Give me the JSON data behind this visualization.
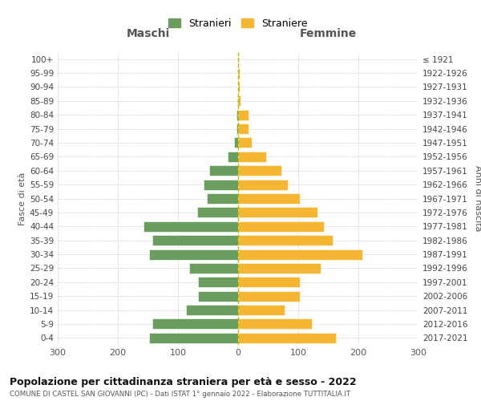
{
  "age_groups": [
    "100+",
    "95-99",
    "90-94",
    "85-89",
    "80-84",
    "75-79",
    "70-74",
    "65-69",
    "60-64",
    "55-59",
    "50-54",
    "45-49",
    "40-44",
    "35-39",
    "30-34",
    "25-29",
    "20-24",
    "15-19",
    "10-14",
    "5-9",
    "0-4"
  ],
  "birth_years": [
    "≤ 1921",
    "1922-1926",
    "1927-1931",
    "1932-1936",
    "1937-1941",
    "1942-1946",
    "1947-1951",
    "1952-1956",
    "1957-1961",
    "1962-1966",
    "1967-1971",
    "1972-1976",
    "1977-1981",
    "1982-1986",
    "1987-1991",
    "1992-1996",
    "1997-2001",
    "2002-2006",
    "2007-2011",
    "2012-2016",
    "2017-2021"
  ],
  "maschi": [
    0,
    0,
    0,
    1,
    3,
    3,
    7,
    18,
    48,
    57,
    52,
    68,
    158,
    143,
    148,
    82,
    67,
    67,
    87,
    143,
    148
  ],
  "femmine": [
    1,
    2,
    3,
    4,
    17,
    17,
    22,
    47,
    72,
    82,
    102,
    132,
    142,
    157,
    207,
    137,
    102,
    102,
    77,
    122,
    162
  ],
  "maschi_color": "#6b9e5e",
  "femmine_color": "#f5b731",
  "center_line_color": "#b8b800",
  "grid_color": "#cccccc",
  "background_color": "#ffffff",
  "title": "Popolazione per cittadinanza straniera per età e sesso - 2022",
  "subtitle": "COMUNE DI CASTEL SAN GIOVANNI (PC) - Dati ISTAT 1° gennaio 2022 - Elaborazione TUTTITALIA.IT",
  "xlabel_left": "Maschi",
  "xlabel_right": "Femmine",
  "ylabel_left": "Fasce di età",
  "ylabel_right": "Anni di nascita",
  "legend_maschi": "Stranieri",
  "legend_femmine": "Straniere",
  "xlim": 300,
  "xticks": [
    -300,
    -200,
    -100,
    0,
    100,
    200,
    300
  ],
  "xticklabels": [
    "300",
    "200",
    "100",
    "0",
    "100",
    "200",
    "300"
  ]
}
